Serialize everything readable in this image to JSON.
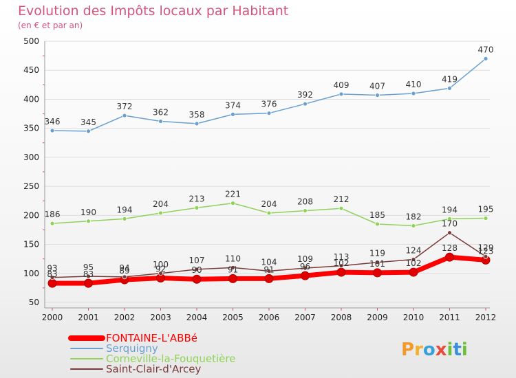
{
  "chart_data": {
    "type": "line",
    "title": "Evolution des Impôts locaux par Habitant",
    "subtitle": "(en € et par an)",
    "x": [
      "2000",
      "2001",
      "2002",
      "2003",
      "2004",
      "2005",
      "2006",
      "2007",
      "2008",
      "2009",
      "2010",
      "2011",
      "2012"
    ],
    "ylim": [
      50,
      500
    ],
    "yticks": [
      50,
      100,
      150,
      200,
      250,
      300,
      350,
      400,
      450,
      500
    ],
    "grid": "horizontal",
    "legend_position": "bottom-left",
    "series": [
      {
        "name": "FONTAINE-L'ABBé",
        "color": "#ff0000",
        "values": [
          83,
          83,
          89,
          92,
          90,
          91,
          91,
          96,
          102,
          101,
          102,
          128,
          123
        ],
        "width": 7
      },
      {
        "name": "Serquigny",
        "color": "#6a9fcf",
        "values": [
          346,
          345,
          372,
          362,
          358,
          374,
          376,
          392,
          409,
          407,
          410,
          419,
          470
        ],
        "width": 1.5
      },
      {
        "name": "Corneville-la-Fouquetière",
        "color": "#8fd25a",
        "values": [
          186,
          190,
          194,
          204,
          213,
          221,
          204,
          208,
          212,
          185,
          182,
          194,
          195
        ],
        "width": 1.5
      },
      {
        "name": "Saint-Clair-d'Arcey",
        "color": "#7a3a3a",
        "values": [
          93,
          95,
          94,
          100,
          107,
          110,
          104,
          109,
          113,
          119,
          124,
          170,
          129
        ],
        "width": 1.5
      }
    ]
  },
  "logo": {
    "text": "Proxiti",
    "letters": [
      "P",
      "r",
      "o",
      "x",
      "i",
      "t",
      "i"
    ]
  },
  "colors": {
    "axis": "#999999",
    "grid": "#dddddd",
    "accent": "#d4547a"
  }
}
